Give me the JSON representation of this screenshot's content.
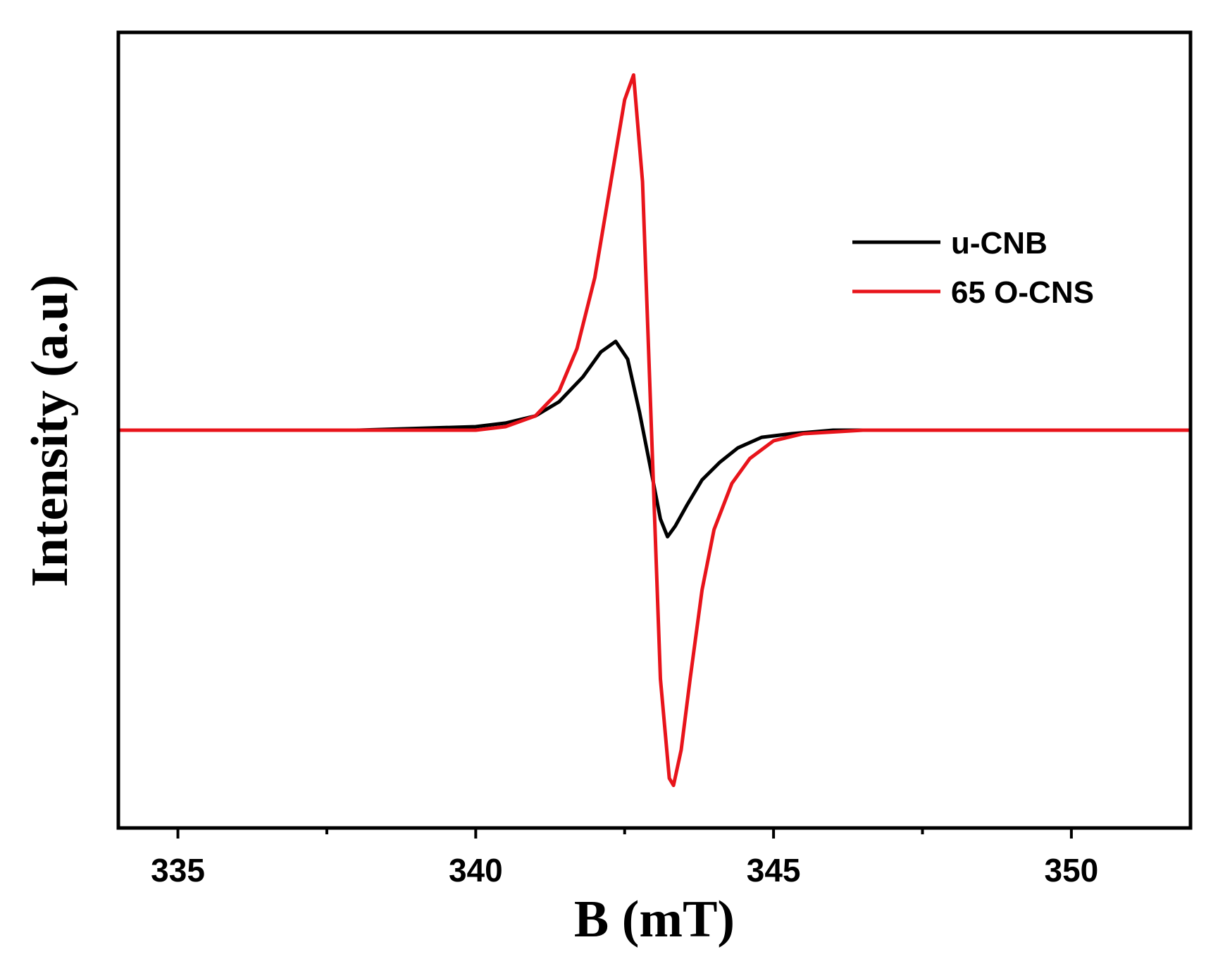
{
  "chart_data": {
    "type": "line",
    "title": "",
    "xlabel": "B (mT)",
    "ylabel": "Intensity (a.u)",
    "xlim": [
      334,
      352
    ],
    "ylim": [
      -1.12,
      1.12
    ],
    "x_major_ticks": [
      335,
      340,
      345,
      350
    ],
    "x_tick_labels": [
      "335",
      "340",
      "345",
      "350"
    ],
    "x_minor_ticks": [
      337.5,
      342.5,
      347.5
    ],
    "y_tick_labels": false,
    "grid": false,
    "legend_position": "upper-right",
    "series": [
      {
        "name": "u-CNB",
        "color": "#000000",
        "x": [
          334,
          336,
          338,
          340,
          340.5,
          341,
          341.4,
          341.8,
          342.1,
          342.35,
          342.55,
          342.75,
          342.95,
          343.1,
          343.22,
          343.35,
          343.55,
          343.8,
          344.1,
          344.4,
          344.8,
          345.3,
          346,
          348,
          350,
          352
        ],
        "y": [
          0.0,
          0.0,
          0.0,
          0.01,
          0.02,
          0.04,
          0.08,
          0.15,
          0.22,
          0.25,
          0.2,
          0.05,
          -0.12,
          -0.25,
          -0.3,
          -0.27,
          -0.21,
          -0.14,
          -0.09,
          -0.05,
          -0.02,
          -0.01,
          0.0,
          0.0,
          0.0,
          0.0
        ]
      },
      {
        "name": "65 O-CNS",
        "color": "#e8141b",
        "x": [
          334,
          336,
          338,
          340,
          340.5,
          341,
          341.4,
          341.7,
          342.0,
          342.3,
          342.5,
          342.65,
          342.8,
          342.95,
          343.1,
          343.25,
          343.32,
          343.45,
          343.6,
          343.8,
          344.0,
          344.3,
          344.6,
          345.0,
          345.5,
          346.5,
          348,
          350,
          352
        ],
        "y": [
          0.0,
          0.0,
          0.0,
          0.0,
          0.01,
          0.04,
          0.11,
          0.23,
          0.43,
          0.73,
          0.93,
          1.0,
          0.7,
          0.0,
          -0.7,
          -0.98,
          -1.0,
          -0.9,
          -0.7,
          -0.45,
          -0.28,
          -0.15,
          -0.08,
          -0.03,
          -0.01,
          0.0,
          0.0,
          0.0,
          0.0
        ]
      }
    ]
  }
}
